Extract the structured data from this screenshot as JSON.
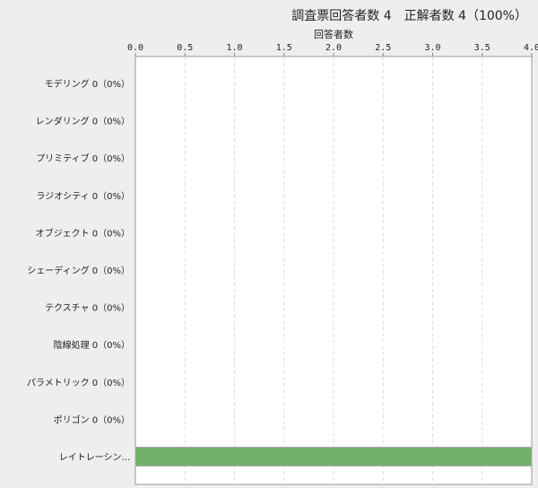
{
  "title": "調査票回答者数 4　正解者数 4（100%）",
  "chart_data": {
    "type": "bar",
    "orientation": "horizontal",
    "title": "調査票回答者数 4　正解者数 4（100%）",
    "xlabel": "回答者数",
    "xlim": [
      0,
      4
    ],
    "xticks": [
      "0.0",
      "0.5",
      "1.0",
      "1.5",
      "2.0",
      "2.5",
      "3.0",
      "3.5",
      "4.0"
    ],
    "x_axis_position": "top",
    "grid": "vertical dashed",
    "bar_color": "#72b06b",
    "categories": [
      "モデリング 0（0%）",
      "レンダリング 0（0%）",
      "プリミティブ 0（0%）",
      "ラジオシティ 0（0%）",
      "オブジェクト 0（0%）",
      "シェーディング 0（0%）",
      "テクスチャ 0（0%）",
      "陰線処理 0（0%）",
      "パラメトリック 0（0%）",
      "ポリゴン 0（0%）",
      "レイトレーシン..."
    ],
    "values": [
      0,
      0,
      0,
      0,
      0,
      0,
      0,
      0,
      0,
      0,
      4
    ]
  }
}
